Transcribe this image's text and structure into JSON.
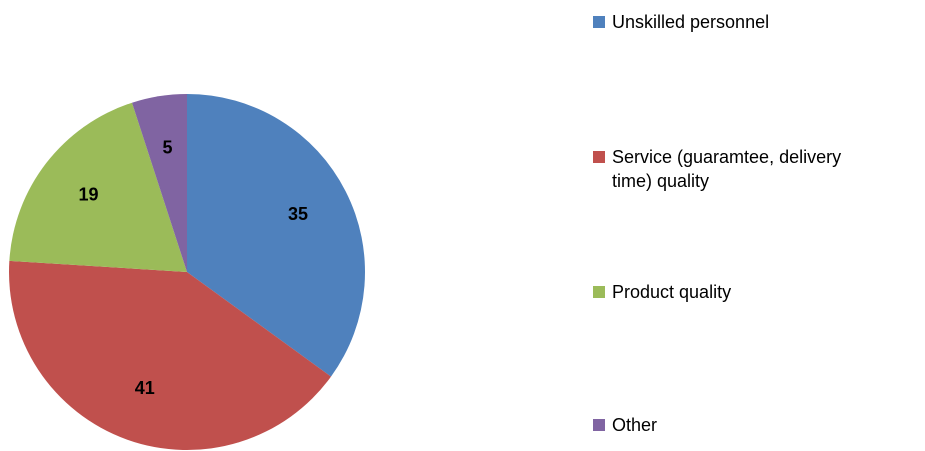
{
  "chart_data": {
    "type": "pie",
    "categories": [
      "Unskilled personnel",
      "Service (guaramtee, delivery time) quality",
      "Product quality",
      "Other"
    ],
    "values": [
      35,
      41,
      19,
      5
    ],
    "colors": [
      "#4f81bd",
      "#c0504d",
      "#9bbb59",
      "#8064a2"
    ],
    "legend": "right"
  }
}
